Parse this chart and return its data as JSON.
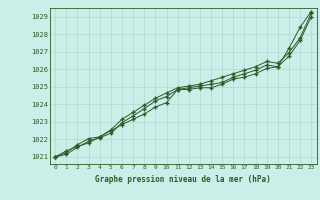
{
  "title": "Graphe pression niveau de la mer (hPa)",
  "background_color": "#cceee8",
  "line_color": "#2d5a27",
  "grid_color": "#b0d8d0",
  "xlim": [
    -0.5,
    23.5
  ],
  "ylim": [
    1020.6,
    1029.5
  ],
  "yticks": [
    1021,
    1022,
    1023,
    1024,
    1025,
    1026,
    1027,
    1028,
    1029
  ],
  "xticks": [
    0,
    1,
    2,
    3,
    4,
    5,
    6,
    7,
    8,
    9,
    10,
    11,
    12,
    13,
    14,
    15,
    16,
    17,
    18,
    19,
    20,
    21,
    22,
    23
  ],
  "series": [
    [
      1021.0,
      1021.35,
      1021.6,
      1021.8,
      1022.15,
      1022.5,
      1022.85,
      1023.15,
      1023.45,
      1023.85,
      1024.1,
      1024.85,
      1024.85,
      1024.95,
      1024.95,
      1025.15,
      1025.45,
      1025.55,
      1025.75,
      1026.05,
      1026.15,
      1027.2,
      1028.4,
      1029.3
    ],
    [
      1021.0,
      1021.15,
      1021.55,
      1021.9,
      1022.1,
      1022.35,
      1022.95,
      1023.35,
      1023.75,
      1024.2,
      1024.45,
      1024.85,
      1024.95,
      1025.05,
      1025.15,
      1025.25,
      1025.55,
      1025.75,
      1025.95,
      1026.25,
      1026.15,
      1026.75,
      1027.65,
      1029.0
    ],
    [
      1021.0,
      1021.25,
      1021.7,
      1022.05,
      1022.15,
      1022.55,
      1023.15,
      1023.55,
      1023.95,
      1024.35,
      1024.65,
      1024.95,
      1025.05,
      1025.15,
      1025.35,
      1025.55,
      1025.75,
      1025.95,
      1026.15,
      1026.45,
      1026.35,
      1026.95,
      1027.8,
      1029.2
    ]
  ]
}
